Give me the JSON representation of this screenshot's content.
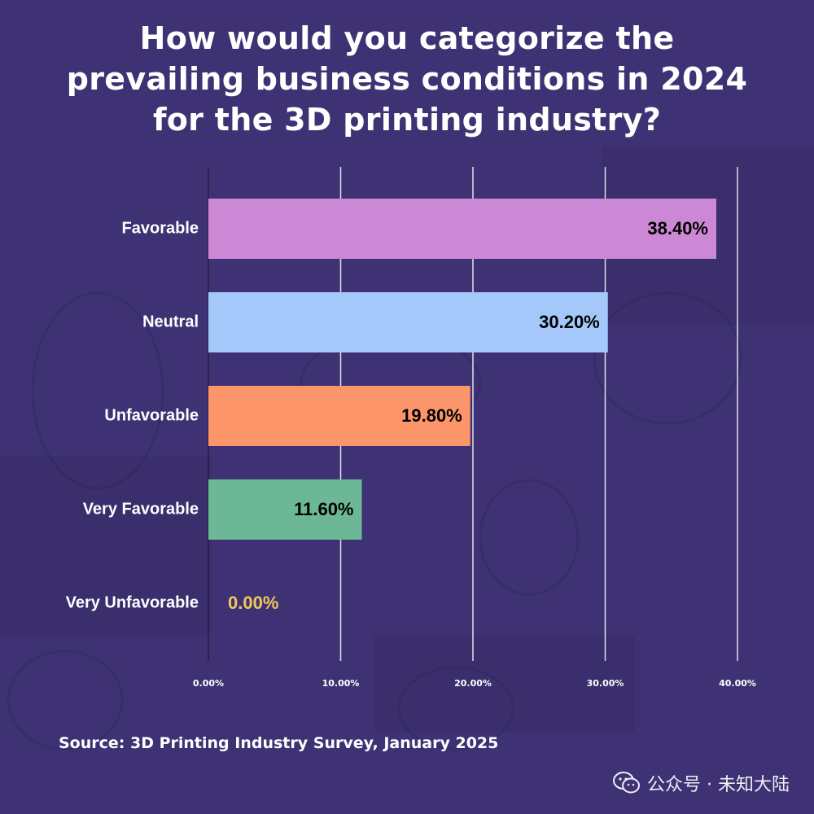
{
  "title_lines": [
    "How would you categorize the",
    "prevailing business conditions in 2024",
    "for the 3D printing industry?"
  ],
  "source": "Source: 3D Printing Industry Survey, January 2025",
  "watermark": "公众号 · 未知大陆",
  "colors": {
    "background": "#3f3274",
    "zero_label": "#f2c75c"
  },
  "chart_data": {
    "type": "bar",
    "orientation": "horizontal",
    "title": "How would you categorize the prevailing business conditions in 2024 for the 3D printing industry?",
    "categories": [
      "Favorable",
      "Neutral",
      "Unfavorable",
      "Very Favorable",
      "Very Unfavorable"
    ],
    "values": [
      38.4,
      30.2,
      19.8,
      11.6,
      0.0
    ],
    "value_labels": [
      "38.40%",
      "30.20%",
      "19.80%",
      "11.60%",
      "0.00%"
    ],
    "bar_colors": [
      "#cc88d4",
      "#a4c8fa",
      "#fd956b",
      "#6cb896",
      "#f2c75c"
    ],
    "xlim": [
      0,
      40
    ],
    "x_ticks": [
      0,
      10,
      20,
      30,
      40
    ],
    "x_tick_labels": [
      "0.00%",
      "10.00%",
      "20.00%",
      "30.00%",
      "40.00%"
    ],
    "grid": true,
    "legend": "none"
  }
}
